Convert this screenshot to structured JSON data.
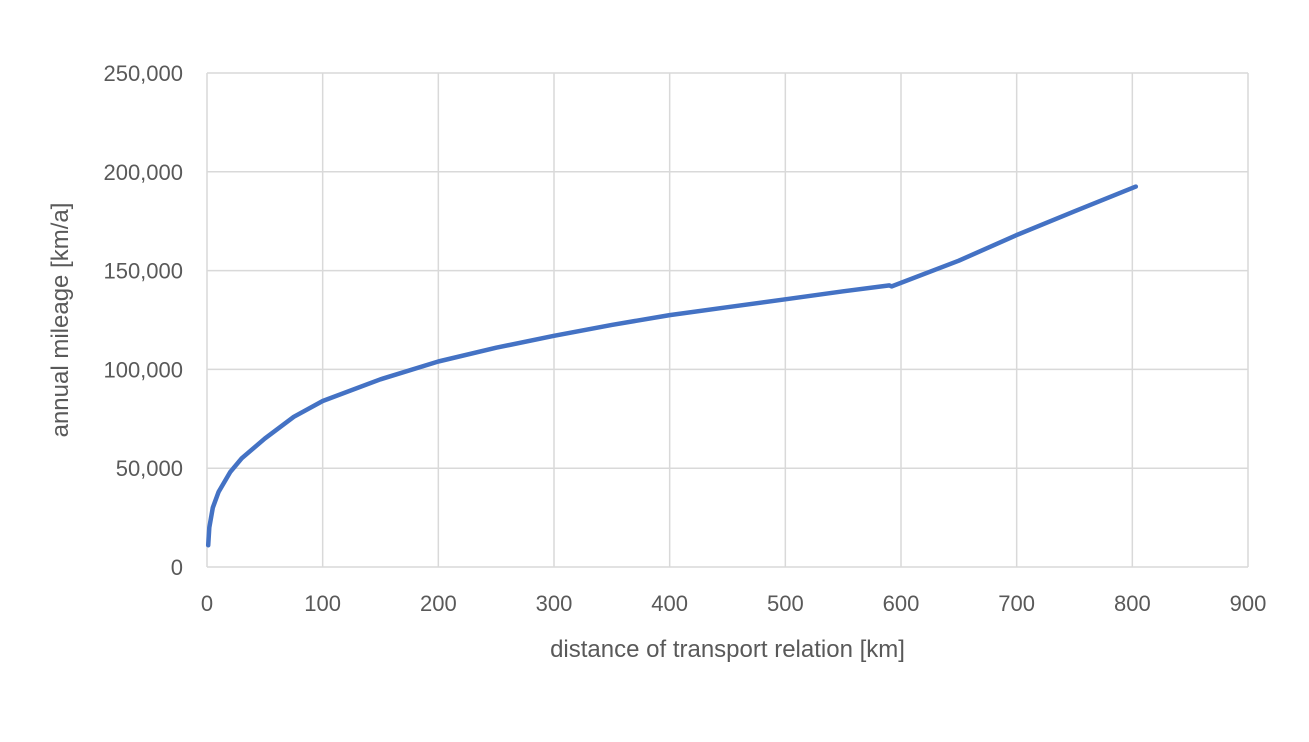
{
  "colors": {
    "series": "#4472C4",
    "grid": "#D9D9D9",
    "text": "#595959",
    "background": "#FFFFFF"
  },
  "chart_data": {
    "type": "line",
    "title": "",
    "xlabel": "distance of transport relation [km]",
    "ylabel": "annual mileage [km/a]",
    "xlim": [
      0,
      900
    ],
    "ylim": [
      0,
      250000
    ],
    "x_ticks": [
      0,
      100,
      200,
      300,
      400,
      500,
      600,
      700,
      800,
      900
    ],
    "y_ticks": [
      0,
      50000,
      100000,
      150000,
      200000,
      250000
    ],
    "x_tick_labels": [
      "0",
      "100",
      "200",
      "300",
      "400",
      "500",
      "600",
      "700",
      "800",
      "900"
    ],
    "y_tick_labels": [
      "0",
      "50,000",
      "100,000",
      "150,000",
      "200,000",
      "250,000"
    ],
    "grid": true,
    "legend": "none",
    "series": [
      {
        "x": [
          1,
          2,
          5,
          10,
          20,
          30,
          50,
          75,
          100,
          150,
          200,
          250,
          300,
          350,
          400,
          450,
          500,
          550,
          590,
          592,
          650,
          700,
          750,
          803
        ],
        "values": [
          11000,
          20000,
          30000,
          38000,
          48000,
          55000,
          65000,
          76000,
          84000,
          95000,
          104000,
          111000,
          117000,
          122500,
          127500,
          131500,
          135500,
          139500,
          142500,
          142000,
          155000,
          168000,
          180000,
          192500
        ]
      }
    ]
  }
}
